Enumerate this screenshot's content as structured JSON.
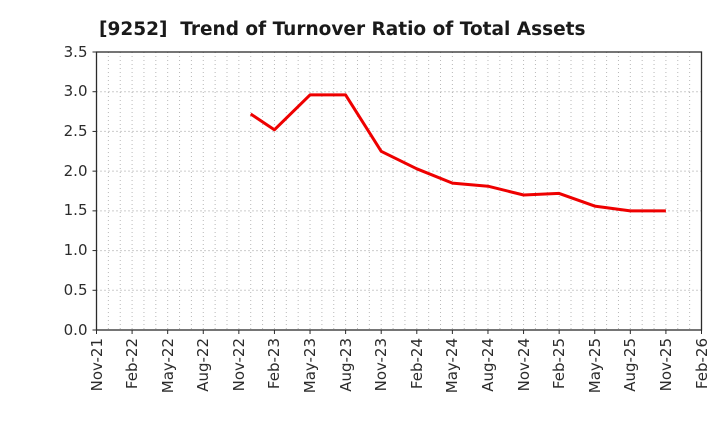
{
  "window": {
    "background": "#ffffff"
  },
  "chart_data": {
    "type": "line",
    "title": "[9252]  Trend of Turnover Ratio of Total Assets",
    "xlabel": "",
    "ylabel": "",
    "ylim": [
      0.0,
      3.5
    ],
    "y_tick_step": 0.5,
    "y_tick_labels": [
      "0.0",
      "0.5",
      "1.0",
      "1.5",
      "2.0",
      "2.5",
      "3.0",
      "3.5"
    ],
    "x_tick_labels": [
      "Nov-21",
      "Feb-22",
      "May-22",
      "Aug-22",
      "Nov-22",
      "Feb-23",
      "May-23",
      "Aug-23",
      "Nov-23",
      "Feb-24",
      "May-24",
      "Aug-24",
      "Nov-24",
      "Feb-25",
      "May-25",
      "Aug-25",
      "Nov-25",
      "Feb-26"
    ],
    "x_total_months": 51,
    "x_tick_interval_months": 3,
    "x_minor_gridline_interval_months": 1,
    "grid": "dotted",
    "legend_position": "none",
    "series": [
      {
        "name": "Turnover Ratio of Total Assets",
        "color": "#ee0000",
        "line_width": 3,
        "points": [
          {
            "label": "Dec-22",
            "month_index": 13,
            "value": 2.72
          },
          {
            "label": "Feb-23",
            "month_index": 15,
            "value": 2.52
          },
          {
            "label": "May-23",
            "month_index": 18,
            "value": 2.96
          },
          {
            "label": "Aug-23",
            "month_index": 21,
            "value": 2.96
          },
          {
            "label": "Nov-23",
            "month_index": 24,
            "value": 2.25
          },
          {
            "label": "Feb-24",
            "month_index": 27,
            "value": 2.03
          },
          {
            "label": "May-24",
            "month_index": 30,
            "value": 1.85
          },
          {
            "label": "Aug-24",
            "month_index": 33,
            "value": 1.81
          },
          {
            "label": "Nov-24",
            "month_index": 36,
            "value": 1.7
          },
          {
            "label": "Feb-25",
            "month_index": 39,
            "value": 1.72
          },
          {
            "label": "May-25",
            "month_index": 42,
            "value": 1.56
          },
          {
            "label": "Aug-25",
            "month_index": 45,
            "value": 1.5
          },
          {
            "label": "Nov-25",
            "month_index": 48,
            "value": 1.5
          }
        ]
      }
    ],
    "style": {
      "grid_color_horizontal": "#999999",
      "grid_color_vertical": "#b8b8b8",
      "axis_border_color": "#2b2b2b",
      "tick_color": "#2b2b2b",
      "label_color": "#2b2b2b",
      "title_color": "#1a1a1a",
      "plot_background": "#ffffff"
    }
  }
}
